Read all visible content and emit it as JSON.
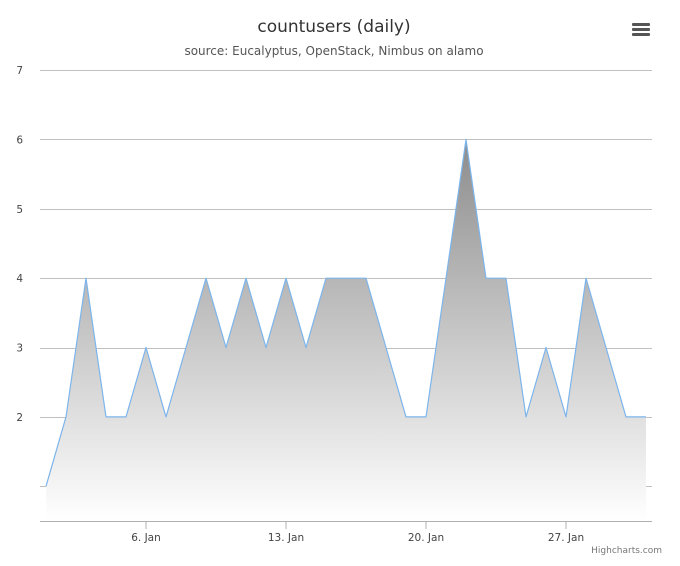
{
  "chart_data": {
    "type": "area",
    "title": "countusers (daily)",
    "subtitle": "source: Eucalyptus, OpenStack, Nimbus on alamo",
    "credits": "Highcharts.com",
    "start_date": "2014-01-01",
    "x": [
      "2014-01-01",
      "2014-01-02",
      "2014-01-03",
      "2014-01-04",
      "2014-01-05",
      "2014-01-06",
      "2014-01-07",
      "2014-01-08",
      "2014-01-09",
      "2014-01-10",
      "2014-01-11",
      "2014-01-12",
      "2014-01-13",
      "2014-01-14",
      "2014-01-15",
      "2014-01-16",
      "2014-01-17",
      "2014-01-18",
      "2014-01-19",
      "2014-01-20",
      "2014-01-21",
      "2014-01-22",
      "2014-01-23",
      "2014-01-24",
      "2014-01-25",
      "2014-01-26",
      "2014-01-27",
      "2014-01-28",
      "2014-01-29",
      "2014-01-30",
      "2014-01-31"
    ],
    "values": [
      1,
      2,
      4,
      2,
      2,
      3,
      2,
      3,
      4,
      3,
      4,
      3,
      4,
      3,
      4,
      4,
      4,
      3,
      2,
      2,
      4,
      6,
      4,
      4,
      2,
      3,
      2,
      4,
      3,
      2,
      2
    ],
    "ylim": [
      0.5,
      7
    ],
    "yticks": [
      2,
      3,
      4,
      5,
      6,
      7
    ],
    "xticks": [
      {
        "date": "2014-01-06",
        "label": "6. Jan"
      },
      {
        "date": "2014-01-13",
        "label": "13. Jan"
      },
      {
        "date": "2014-01-20",
        "label": "20. Jan"
      },
      {
        "date": "2014-01-27",
        "label": "27. Jan"
      }
    ],
    "grid": true,
    "legend": "none",
    "line_color": "#7cb5ec",
    "fill_top_color": "#8c8c8c",
    "fill_bottom_color": "#ffffff"
  },
  "icons": {
    "menu": "menu-icon"
  }
}
